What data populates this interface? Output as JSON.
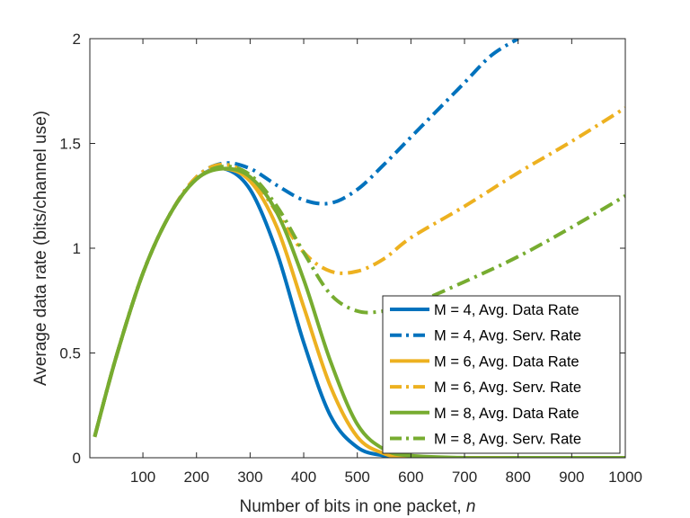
{
  "chart_data": {
    "type": "line",
    "title": "",
    "xlabel": "Number of bits in one packet, ",
    "xlabel_var": "n",
    "ylabel": "Average data rate (bits/channel use)",
    "xlim": [
      1,
      1000
    ],
    "ylim": [
      0,
      2
    ],
    "xticks": [
      100,
      200,
      300,
      400,
      500,
      600,
      700,
      800,
      900,
      1000
    ],
    "yticks": [
      0,
      0.5,
      1,
      1.5,
      2
    ],
    "ytick_labels": [
      "0",
      "0.5",
      "1",
      "1.5",
      "2"
    ],
    "grid": false,
    "legend_position": "bottom-right",
    "series": [
      {
        "name": "M = 4, Avg. Data Rate",
        "color": "#0072BD",
        "dash": "solid",
        "x": [
          10,
          50,
          100,
          150,
          200,
          250,
          300,
          350,
          400,
          450,
          500,
          550,
          600,
          700,
          800,
          900,
          1000
        ],
        "y": [
          0.1,
          0.48,
          0.88,
          1.16,
          1.33,
          1.38,
          1.28,
          0.98,
          0.55,
          0.2,
          0.05,
          0.01,
          0.0,
          0.0,
          0.0,
          0.0,
          0.0
        ]
      },
      {
        "name": "M = 4, Avg. Serv. Rate",
        "color": "#0072BD",
        "dash": "dashdot",
        "x": [
          10,
          50,
          100,
          150,
          200,
          250,
          300,
          350,
          400,
          450,
          500,
          550,
          600,
          650,
          700,
          750,
          800
        ],
        "y": [
          0.1,
          0.48,
          0.88,
          1.16,
          1.34,
          1.405,
          1.38,
          1.3,
          1.23,
          1.215,
          1.28,
          1.4,
          1.53,
          1.66,
          1.79,
          1.92,
          2.0
        ]
      },
      {
        "name": "M = 6, Avg. Data Rate",
        "color": "#EDB120",
        "dash": "solid",
        "x": [
          10,
          50,
          100,
          150,
          200,
          250,
          300,
          350,
          400,
          450,
          500,
          550,
          600,
          700,
          800,
          900,
          1000
        ],
        "y": [
          0.1,
          0.48,
          0.88,
          1.16,
          1.33,
          1.38,
          1.32,
          1.1,
          0.72,
          0.34,
          0.1,
          0.02,
          0.0,
          0.0,
          0.0,
          0.0,
          0.0
        ]
      },
      {
        "name": "M = 6, Avg. Serv. Rate",
        "color": "#EDB120",
        "dash": "dashdot",
        "x": [
          10,
          50,
          100,
          150,
          200,
          250,
          300,
          350,
          400,
          450,
          500,
          550,
          600,
          700,
          800,
          900,
          1000
        ],
        "y": [
          0.1,
          0.48,
          0.88,
          1.16,
          1.34,
          1.4,
          1.34,
          1.17,
          0.98,
          0.89,
          0.89,
          0.95,
          1.05,
          1.2,
          1.36,
          1.51,
          1.67
        ]
      },
      {
        "name": "M = 8, Avg. Data Rate",
        "color": "#77AC30",
        "dash": "solid",
        "x": [
          10,
          50,
          100,
          150,
          200,
          250,
          300,
          350,
          400,
          450,
          500,
          550,
          600,
          700,
          800,
          900,
          1000
        ],
        "y": [
          0.1,
          0.48,
          0.88,
          1.16,
          1.33,
          1.38,
          1.34,
          1.17,
          0.85,
          0.46,
          0.16,
          0.04,
          0.01,
          0.0,
          0.0,
          0.0,
          0.0
        ]
      },
      {
        "name": "M = 8, Avg. Serv. Rate",
        "color": "#77AC30",
        "dash": "dashdot",
        "x": [
          10,
          50,
          100,
          150,
          200,
          250,
          300,
          350,
          400,
          450,
          500,
          550,
          600,
          700,
          800,
          900,
          1000
        ],
        "y": [
          0.1,
          0.48,
          0.88,
          1.16,
          1.33,
          1.39,
          1.35,
          1.2,
          0.98,
          0.78,
          0.7,
          0.7,
          0.73,
          0.84,
          0.96,
          1.1,
          1.25
        ]
      }
    ]
  }
}
